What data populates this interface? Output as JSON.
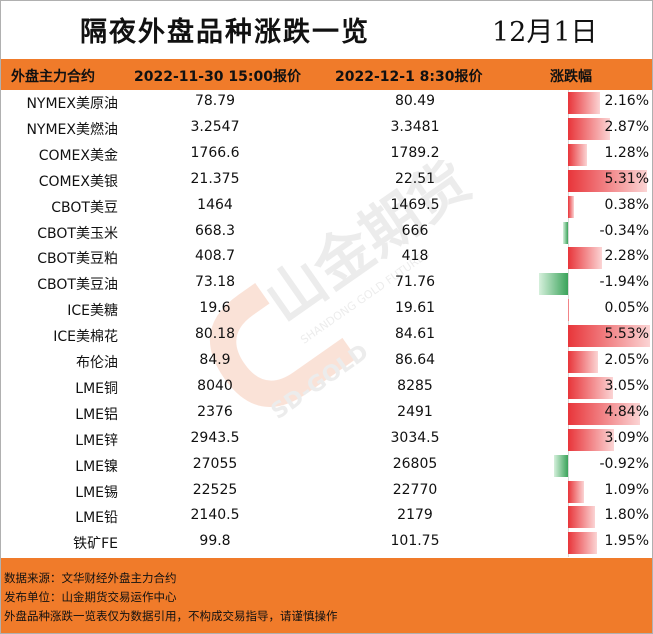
{
  "title": "隔夜外盘品种涨跌一览",
  "date": "12月1日",
  "header": {
    "col_name": "外盘主力合约",
    "col_v1": "2022-11-30 15:00报价",
    "col_v2": "2022-12-1 8:30报价",
    "col_chg": "涨跌幅"
  },
  "rows": [
    {
      "name": "NYMEX美原油",
      "v1": "78.79",
      "v2": "80.49",
      "chg": "2.16%",
      "pct": 2.16
    },
    {
      "name": "NYMEX美燃油",
      "v1": "3.2547",
      "v2": "3.3481",
      "chg": "2.87%",
      "pct": 2.87
    },
    {
      "name": "COMEX美金",
      "v1": "1766.6",
      "v2": "1789.2",
      "chg": "1.28%",
      "pct": 1.28
    },
    {
      "name": "COMEX美银",
      "v1": "21.375",
      "v2": "22.51",
      "chg": "5.31%",
      "pct": 5.31
    },
    {
      "name": "CBOT美豆",
      "v1": "1464",
      "v2": "1469.5",
      "chg": "0.38%",
      "pct": 0.38
    },
    {
      "name": "CBOT美玉米",
      "v1": "668.3",
      "v2": "666",
      "chg": "-0.34%",
      "pct": -0.34
    },
    {
      "name": "CBOT美豆粕",
      "v1": "408.7",
      "v2": "418",
      "chg": "2.28%",
      "pct": 2.28
    },
    {
      "name": "CBOT美豆油",
      "v1": "73.18",
      "v2": "71.76",
      "chg": "-1.94%",
      "pct": -1.94
    },
    {
      "name": "ICE美糖",
      "v1": "19.6",
      "v2": "19.61",
      "chg": "0.05%",
      "pct": 0.05
    },
    {
      "name": "ICE美棉花",
      "v1": "80.18",
      "v2": "84.61",
      "chg": "5.53%",
      "pct": 5.53
    },
    {
      "name": "布伦油",
      "v1": "84.9",
      "v2": "86.64",
      "chg": "2.05%",
      "pct": 2.05
    },
    {
      "name": "LME铜",
      "v1": "8040",
      "v2": "8285",
      "chg": "3.05%",
      "pct": 3.05
    },
    {
      "name": "LME铝",
      "v1": "2376",
      "v2": "2491",
      "chg": "4.84%",
      "pct": 4.84
    },
    {
      "name": "LME锌",
      "v1": "2943.5",
      "v2": "3034.5",
      "chg": "3.09%",
      "pct": 3.09
    },
    {
      "name": "LME镍",
      "v1": "27055",
      "v2": "26805",
      "chg": "-0.92%",
      "pct": -0.92
    },
    {
      "name": "LME锡",
      "v1": "22525",
      "v2": "22770",
      "chg": "1.09%",
      "pct": 1.09
    },
    {
      "name": "LME铅",
      "v1": "2140.5",
      "v2": "2179",
      "chg": "1.80%",
      "pct": 1.8
    },
    {
      "name": "铁矿FE",
      "v1": "99.8",
      "v2": "101.75",
      "chg": "1.95%",
      "pct": 1.95
    }
  ],
  "footer": {
    "source": "数据来源：文华财经外盘主力合约",
    "publisher": "发布单位：山金期货交易运作中心",
    "disclaimer": "外盘品种涨跌一览表仅为数据引用，不构成交易指导，请谨慎操作"
  },
  "watermark": {
    "text_cn": "山金期货",
    "text_en": "SHANDONG GOLD FUTURES",
    "text_sd": "SD-GOLD"
  },
  "colors": {
    "header_bg": "#f07b2a",
    "bar_positive": "#e8353a",
    "bar_negative": "#3aa35a"
  }
}
